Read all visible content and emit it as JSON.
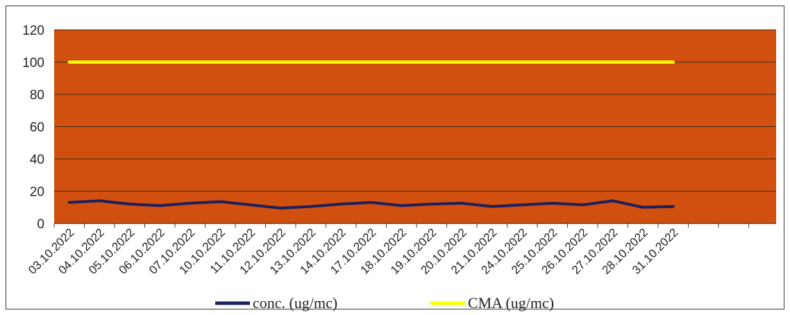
{
  "chart_data": {
    "type": "line",
    "categories": [
      "03.10.2022",
      "04.10.2022",
      "05.10.2022",
      "06.10.2022",
      "07.10.2022",
      "10.10.2022",
      "11.10.2022",
      "12.10.2022",
      "13.10.2022",
      "14.10.2022",
      "17.10.2022",
      "18.10.2022",
      "19.10.2022",
      "20.10.2022",
      "21.10.2022",
      "24.10.2022",
      "25.10.2022",
      "26.10.2022",
      "27.10.2022",
      "28.10.2022",
      "31.10.2022"
    ],
    "series": [
      {
        "name": "conc. (ug/mc)",
        "color": "#1a1f5e",
        "values": [
          13,
          14,
          12,
          11,
          12.5,
          13.5,
          11.5,
          9.5,
          10.5,
          12,
          13,
          11,
          12,
          12.5,
          10.5,
          11.5,
          12.5,
          11.5,
          14,
          10,
          10.5
        ]
      },
      {
        "name": "CMA (ug/mc)",
        "color": "#ffff00",
        "values": [
          100,
          100,
          100,
          100,
          100,
          100,
          100,
          100,
          100,
          100,
          100,
          100,
          100,
          100,
          100,
          100,
          100,
          100,
          100,
          100,
          100
        ]
      }
    ],
    "ylim": [
      0,
      120
    ],
    "yticks": [
      0,
      20,
      40,
      60,
      80,
      100,
      120
    ],
    "grid": true,
    "legend": "bottom",
    "plot_background": "#d2500f",
    "gridline_color": "#3a2a1a"
  }
}
